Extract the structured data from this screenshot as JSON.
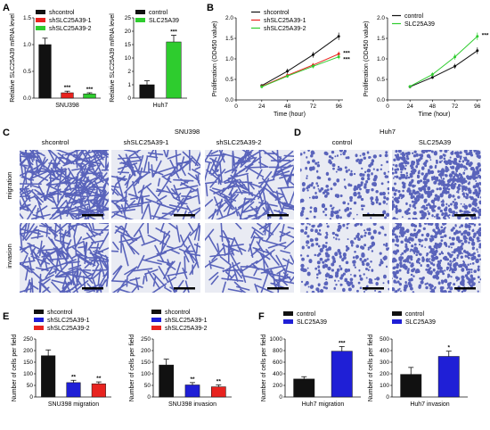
{
  "panels": {
    "A": "A",
    "B": "B",
    "C": "C",
    "D": "D",
    "E": "E",
    "F": "F"
  },
  "colors": {
    "black": "#111111",
    "red": "#e8231f",
    "green": "#2ecc2e",
    "stain": "#3f4bb0",
    "paper": "#e9ebf3"
  },
  "images": {
    "C": {
      "title": "SNU398",
      "columns": [
        "shcontrol",
        "shSLC25A39-1",
        "shSLC25A39-2"
      ],
      "rows": [
        "migration",
        "invasion"
      ]
    },
    "D": {
      "title": "Huh7",
      "columns": [
        "control",
        "SLC25A39"
      ],
      "rows": [
        "migration",
        "invasion"
      ]
    }
  },
  "chart_data": [
    {
      "id": "A1",
      "type": "bar",
      "categories": [
        "shcontrol",
        "shSLC25A39-1",
        "shSLC25A39-2"
      ],
      "values": [
        1.0,
        0.1,
        0.08
      ],
      "errors": [
        0.12,
        0.03,
        0.02
      ],
      "colors": [
        "#111111",
        "#e8231f",
        "#2ecc2e"
      ],
      "significance": [
        "",
        "***",
        "***"
      ],
      "xlabel": "SNU398",
      "ylabel": "Relative SLC25A39 mRNA level",
      "ylim": [
        0,
        1.5
      ],
      "yticks": [
        "0.0",
        "0.5",
        "1.0",
        "1.5"
      ],
      "legend": [
        "shcontrol",
        "shSLC25A39-1",
        "shSLC25A39-2"
      ],
      "legend_position": "top"
    },
    {
      "id": "A2",
      "type": "bar",
      "categories": [
        "control",
        "SLC25A39"
      ],
      "values": [
        1.0,
        16.0
      ],
      "errors": [
        0.3,
        2.5
      ],
      "colors": [
        "#111111",
        "#2ecc2e"
      ],
      "significance": [
        "",
        "***"
      ],
      "xlabel": "Huh7",
      "ylabel": "Relative SLC25A39 mRNA level",
      "ylim": [
        0,
        25
      ],
      "yticks": [
        "0",
        "1",
        "2",
        "10",
        "15",
        "20",
        "25"
      ],
      "legend": [
        "control",
        "SLC25A39"
      ],
      "legend_position": "top"
    },
    {
      "id": "B1",
      "type": "line",
      "x": [
        24,
        48,
        72,
        96
      ],
      "series": [
        {
          "name": "shcontrol",
          "values": [
            0.35,
            0.7,
            1.1,
            1.55
          ],
          "errors": [
            0.03,
            0.06,
            0.07,
            0.09
          ],
          "color": "#111111"
        },
        {
          "name": "shSLC25A39-1",
          "values": [
            0.33,
            0.6,
            0.85,
            1.12
          ],
          "errors": [
            0.03,
            0.04,
            0.05,
            0.06
          ],
          "color": "#e8231f"
        },
        {
          "name": "shSLC25A39-2",
          "values": [
            0.32,
            0.58,
            0.82,
            1.05
          ],
          "errors": [
            0.03,
            0.04,
            0.05,
            0.06
          ],
          "color": "#2ecc2e"
        }
      ],
      "significance": [
        "***",
        "***"
      ],
      "xlabel": "Time (hour)",
      "ylabel": "Proliferation (OD450 value)",
      "xlim": [
        0,
        100
      ],
      "xticks": [
        "0",
        "24",
        "48",
        "72",
        "96"
      ],
      "ylim": [
        0,
        2.0
      ],
      "yticks": [
        "0.0",
        "0.5",
        "1.0",
        "1.5",
        "2.0"
      ],
      "legend_position": "top-left"
    },
    {
      "id": "B2",
      "type": "line",
      "x": [
        24,
        48,
        72,
        96
      ],
      "series": [
        {
          "name": "control",
          "values": [
            0.32,
            0.55,
            0.82,
            1.2
          ],
          "errors": [
            0.03,
            0.04,
            0.06,
            0.08
          ],
          "color": "#111111"
        },
        {
          "name": "SLC25A39",
          "values": [
            0.33,
            0.62,
            1.05,
            1.55
          ],
          "errors": [
            0.03,
            0.05,
            0.07,
            0.09
          ],
          "color": "#2ecc2e"
        }
      ],
      "significance": [
        "***"
      ],
      "xlabel": "Time (hour)",
      "ylabel": "Proliferation (OD450 value)",
      "xlim": [
        0,
        100
      ],
      "xticks": [
        "0",
        "24",
        "48",
        "72",
        "96"
      ],
      "ylim": [
        0,
        2.0
      ],
      "yticks": [
        "0.0",
        "0.5",
        "1.0",
        "1.5",
        "2.0"
      ],
      "legend_position": "top-left"
    },
    {
      "id": "E1",
      "type": "bar",
      "categories": [
        "shcontrol",
        "shSLC25A39-1",
        "shSLC25A39-2"
      ],
      "values": [
        178,
        62,
        57
      ],
      "errors": [
        25,
        10,
        8
      ],
      "colors": [
        "#111111",
        "#1f1fd6",
        "#e8231f"
      ],
      "significance": [
        "",
        "**",
        "**"
      ],
      "xlabel": "SNU398 migration",
      "ylabel": "Number of cells per field",
      "ylim": [
        0,
        250
      ],
      "yticks": [
        "0",
        "50",
        "100",
        "150",
        "200",
        "250"
      ],
      "legend": [
        "shcontrol",
        "shSLC25A39-1",
        "shSLC25A39-2"
      ],
      "legend_position": "top"
    },
    {
      "id": "E2",
      "type": "bar",
      "categories": [
        "shcontrol",
        "shSLC25A39-1",
        "shSLC25A39-2"
      ],
      "values": [
        138,
        52,
        44
      ],
      "errors": [
        25,
        10,
        8
      ],
      "colors": [
        "#111111",
        "#1f1fd6",
        "#e8231f"
      ],
      "significance": [
        "",
        "**",
        "**"
      ],
      "xlabel": "SNU398 invasion",
      "ylabel": "Number of cells per field",
      "ylim": [
        0,
        250
      ],
      "yticks": [
        "0",
        "50",
        "100",
        "150",
        "200",
        "250"
      ],
      "legend": [
        "shcontrol",
        "shSLC25A39-1",
        "shSLC25A39-2"
      ],
      "legend_position": "top"
    },
    {
      "id": "F1",
      "type": "bar",
      "categories": [
        "control",
        "SLC25A39"
      ],
      "values": [
        310,
        790
      ],
      "errors": [
        40,
        80
      ],
      "colors": [
        "#111111",
        "#1f1fd6"
      ],
      "significance": [
        "",
        "***"
      ],
      "xlabel": "Huh7 migration",
      "ylabel": "Number of cells per field",
      "ylim": [
        0,
        1000
      ],
      "yticks": [
        "0",
        "200",
        "400",
        "600",
        "800",
        "1000"
      ],
      "legend": [
        "control",
        "SLC25A39"
      ],
      "legend_position": "top"
    },
    {
      "id": "F2",
      "type": "bar",
      "categories": [
        "control",
        "SLC25A39"
      ],
      "values": [
        195,
        350
      ],
      "errors": [
        60,
        45
      ],
      "colors": [
        "#111111",
        "#1f1fd6"
      ],
      "significance": [
        "",
        "*"
      ],
      "xlabel": "Huh7 invasion",
      "ylabel": "Number of cells per field",
      "ylim": [
        0,
        500
      ],
      "yticks": [
        "0",
        "100",
        "200",
        "300",
        "400",
        "500"
      ],
      "legend": [
        "control",
        "SLC25A39"
      ],
      "legend_position": "top"
    }
  ]
}
